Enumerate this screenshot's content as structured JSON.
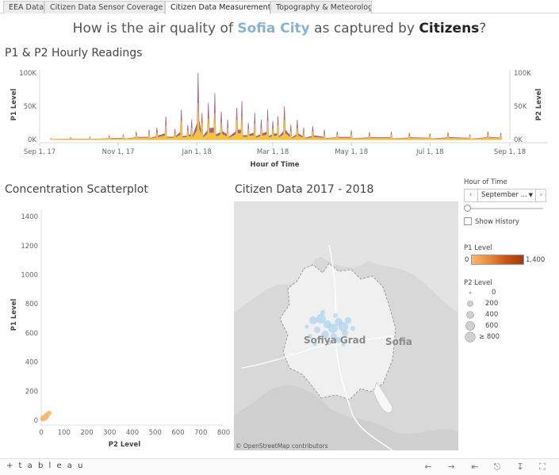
{
  "tabs": [
    {
      "label": "EEA Data",
      "active": false
    },
    {
      "label": "Citizen Data Sensor Coverage ...",
      "active": false
    },
    {
      "label": "Citizen Data Measurements",
      "active": true
    },
    {
      "label": "Topography & Meteorology",
      "active": false
    }
  ],
  "title": {
    "part1": "How is the air quality of ",
    "city": "Sofia City",
    "part2": " as captured by ",
    "citizens": "Citizens",
    "part3": "?"
  },
  "colors": {
    "p1": "#a2638f",
    "p2": "#f4c23c",
    "accent_blue": "#86b4cf",
    "p1_low": "#f6b870",
    "p1_high": "#a33a10"
  },
  "hourly": {
    "section_title": "P1 & P2 Hourly Readings",
    "chart_data": {
      "type": "area",
      "title": "P1 & P2 Hourly Readings",
      "xlabel": "Hour of Time",
      "ylabel_left": "P1 Level",
      "ylabel_right": "P2 Level",
      "x_ticks": [
        "Sep 1, 17",
        "Nov 1, 17",
        "Jan 1, 18",
        "Mar 1, 18",
        "May 1, 18",
        "Jul 1, 18",
        "Sep 1, 18"
      ],
      "y_ticks_left": [
        "100K",
        "50K",
        "0K"
      ],
      "y_ticks_right": [
        "100K",
        "50K",
        "0K"
      ],
      "ylim": [
        0,
        105000
      ],
      "x_range": [
        "Sep 1, 17",
        "Sep 1, 18"
      ],
      "series": [
        {
          "name": "P1 Level",
          "dates": [
            "2017-09-10",
            "2017-09-25",
            "2017-10-10",
            "2017-10-25",
            "2017-11-05",
            "2017-11-15",
            "2017-11-25",
            "2017-12-01",
            "2017-12-08",
            "2017-12-15",
            "2017-12-20",
            "2017-12-25",
            "2017-12-28",
            "2018-01-02",
            "2018-01-05",
            "2018-01-10",
            "2018-01-15",
            "2018-01-20",
            "2018-01-25",
            "2018-02-01",
            "2018-02-05",
            "2018-02-10",
            "2018-02-15",
            "2018-02-20",
            "2018-02-25",
            "2018-03-01",
            "2018-03-05",
            "2018-03-10",
            "2018-03-15",
            "2018-03-20",
            "2018-03-25",
            "2018-04-01",
            "2018-04-10",
            "2018-04-20",
            "2018-05-01",
            "2018-05-15",
            "2018-06-01",
            "2018-06-15",
            "2018-07-01",
            "2018-07-15",
            "2018-08-01",
            "2018-08-15",
            "2018-08-25"
          ],
          "values": [
            2000,
            3000,
            3500,
            6000,
            8000,
            12000,
            15000,
            18000,
            35000,
            16000,
            45000,
            22000,
            30000,
            100000,
            40000,
            55000,
            70000,
            42000,
            30000,
            48000,
            58000,
            25000,
            40000,
            30000,
            45000,
            28000,
            35000,
            50000,
            22000,
            30000,
            18000,
            20000,
            15000,
            12000,
            14000,
            11000,
            12000,
            10000,
            9000,
            11000,
            8000,
            12000,
            10000
          ]
        },
        {
          "name": "P2 Level",
          "dates": [
            "2017-09-10",
            "2017-09-25",
            "2017-10-10",
            "2017-10-25",
            "2017-11-05",
            "2017-11-15",
            "2017-11-25",
            "2017-12-01",
            "2017-12-08",
            "2017-12-15",
            "2017-12-20",
            "2017-12-25",
            "2017-12-28",
            "2018-01-02",
            "2018-01-05",
            "2018-01-10",
            "2018-01-15",
            "2018-01-20",
            "2018-01-25",
            "2018-02-01",
            "2018-02-05",
            "2018-02-10",
            "2018-02-15",
            "2018-02-20",
            "2018-02-25",
            "2018-03-01",
            "2018-03-05",
            "2018-03-10",
            "2018-03-15",
            "2018-03-20",
            "2018-03-25",
            "2018-04-01",
            "2018-04-10",
            "2018-04-20",
            "2018-05-01",
            "2018-05-15",
            "2018-06-01",
            "2018-06-15",
            "2018-07-01",
            "2018-07-15",
            "2018-08-01",
            "2018-08-15",
            "2018-08-25"
          ],
          "values": [
            1500,
            2000,
            2500,
            4000,
            5500,
            8000,
            10000,
            11000,
            22000,
            10000,
            28000,
            14000,
            18000,
            55000,
            25000,
            32000,
            40000,
            26000,
            18000,
            30000,
            35000,
            16000,
            24000,
            18000,
            28000,
            17000,
            22000,
            30000,
            13000,
            18000,
            11000,
            12000,
            9000,
            8000,
            9000,
            7000,
            8000,
            6500,
            6000,
            7000,
            5500,
            8000,
            7000
          ]
        }
      ]
    }
  },
  "scatter": {
    "section_title": "Concentration Scatterplot",
    "chart_data": {
      "type": "scatter",
      "title": "Concentration Scatterplot",
      "xlabel": "P2 Level",
      "ylabel": "P1 Level",
      "x_ticks": [
        "0",
        "100",
        "200",
        "300",
        "400",
        "500",
        "600",
        "700",
        "800"
      ],
      "y_ticks": [
        "0",
        "200",
        "400",
        "600",
        "800",
        "1000",
        "1200",
        "1400"
      ],
      "xlim": [
        0,
        800
      ],
      "ylim": [
        0,
        1450
      ],
      "points": [
        {
          "x": 5,
          "y": 8
        },
        {
          "x": 10,
          "y": 15
        },
        {
          "x": 14,
          "y": 22
        },
        {
          "x": 18,
          "y": 28
        },
        {
          "x": 22,
          "y": 33
        },
        {
          "x": 26,
          "y": 38
        },
        {
          "x": 30,
          "y": 45
        },
        {
          "x": 12,
          "y": 10
        },
        {
          "x": 20,
          "y": 18
        },
        {
          "x": 8,
          "y": 20
        },
        {
          "x": 25,
          "y": 25
        },
        {
          "x": 35,
          "y": 50
        }
      ]
    }
  },
  "map": {
    "section_title": "Citizen Data 2017 - 2018",
    "label_grad": "Sofiya Grad",
    "label_city": "Sofia",
    "attribution": "© OpenStreetMap contributors"
  },
  "controls": {
    "hour_label": "Hour of Time",
    "hour_value": "September ...",
    "show_history": "Show History",
    "p1_legend_title": "P1 Level",
    "p1_min": "0",
    "p1_max": "1,400",
    "p2_legend_title": "P2 Level",
    "p2_sizes": [
      "0",
      "200",
      "400",
      "600",
      "≥ 800"
    ]
  },
  "footer": {
    "brand": "+ t a b l e a u",
    "icons": [
      "undo-icon",
      "redo-icon",
      "revert-icon",
      "share-icon",
      "download-icon",
      "fullscreen-icon"
    ]
  }
}
